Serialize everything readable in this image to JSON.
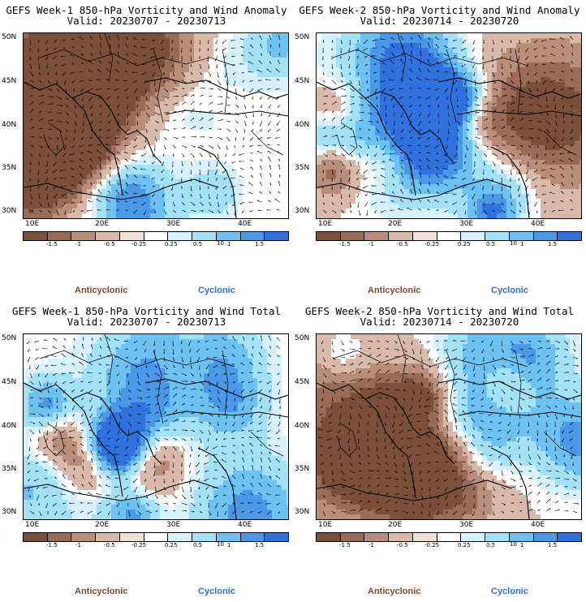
{
  "panels": [
    {
      "title": "GEFS Week-1 850-hPa Vorticity and Wind Anomaly",
      "valid": "Valid: 20230707 - 20230713",
      "seed": 11
    },
    {
      "title": "GEFS Week-2 850-hPa Vorticity and Wind Anomaly",
      "valid": "Valid: 20230714 - 20230720",
      "seed": 23
    },
    {
      "title": "GEFS Week-1 850-hPa Vorticity and Wind Total",
      "valid": "Valid: 20230707 - 20230713",
      "seed": 37
    },
    {
      "title": "GEFS Week-2 850-hPa Vorticity and Wind Total",
      "valid": "Valid: 20230714 - 20230720",
      "seed": 53
    }
  ],
  "lat_labels": [
    "50N",
    "45N",
    "40N",
    "35N",
    "30N"
  ],
  "lon_labels": [
    "10E",
    "20E",
    "30E",
    "40E"
  ],
  "colorbar": {
    "labels": [
      "-1.5",
      "-1",
      "-0.5",
      "-0.25",
      "0.25",
      "0.5",
      "1",
      "1.5"
    ],
    "unit": "10",
    "colors": [
      "#7b4f3a",
      "#9a6b56",
      "#b98f7c",
      "#d8b9aa",
      "#efe0d8",
      "#ffffff",
      "#d6f1fb",
      "#a3e1f7",
      "#6ec2f2",
      "#4a98e8",
      "#2f72dd"
    ]
  },
  "legend": {
    "anticyclonic": "Anticyclonic",
    "cyclonic": "Cyclonic"
  }
}
